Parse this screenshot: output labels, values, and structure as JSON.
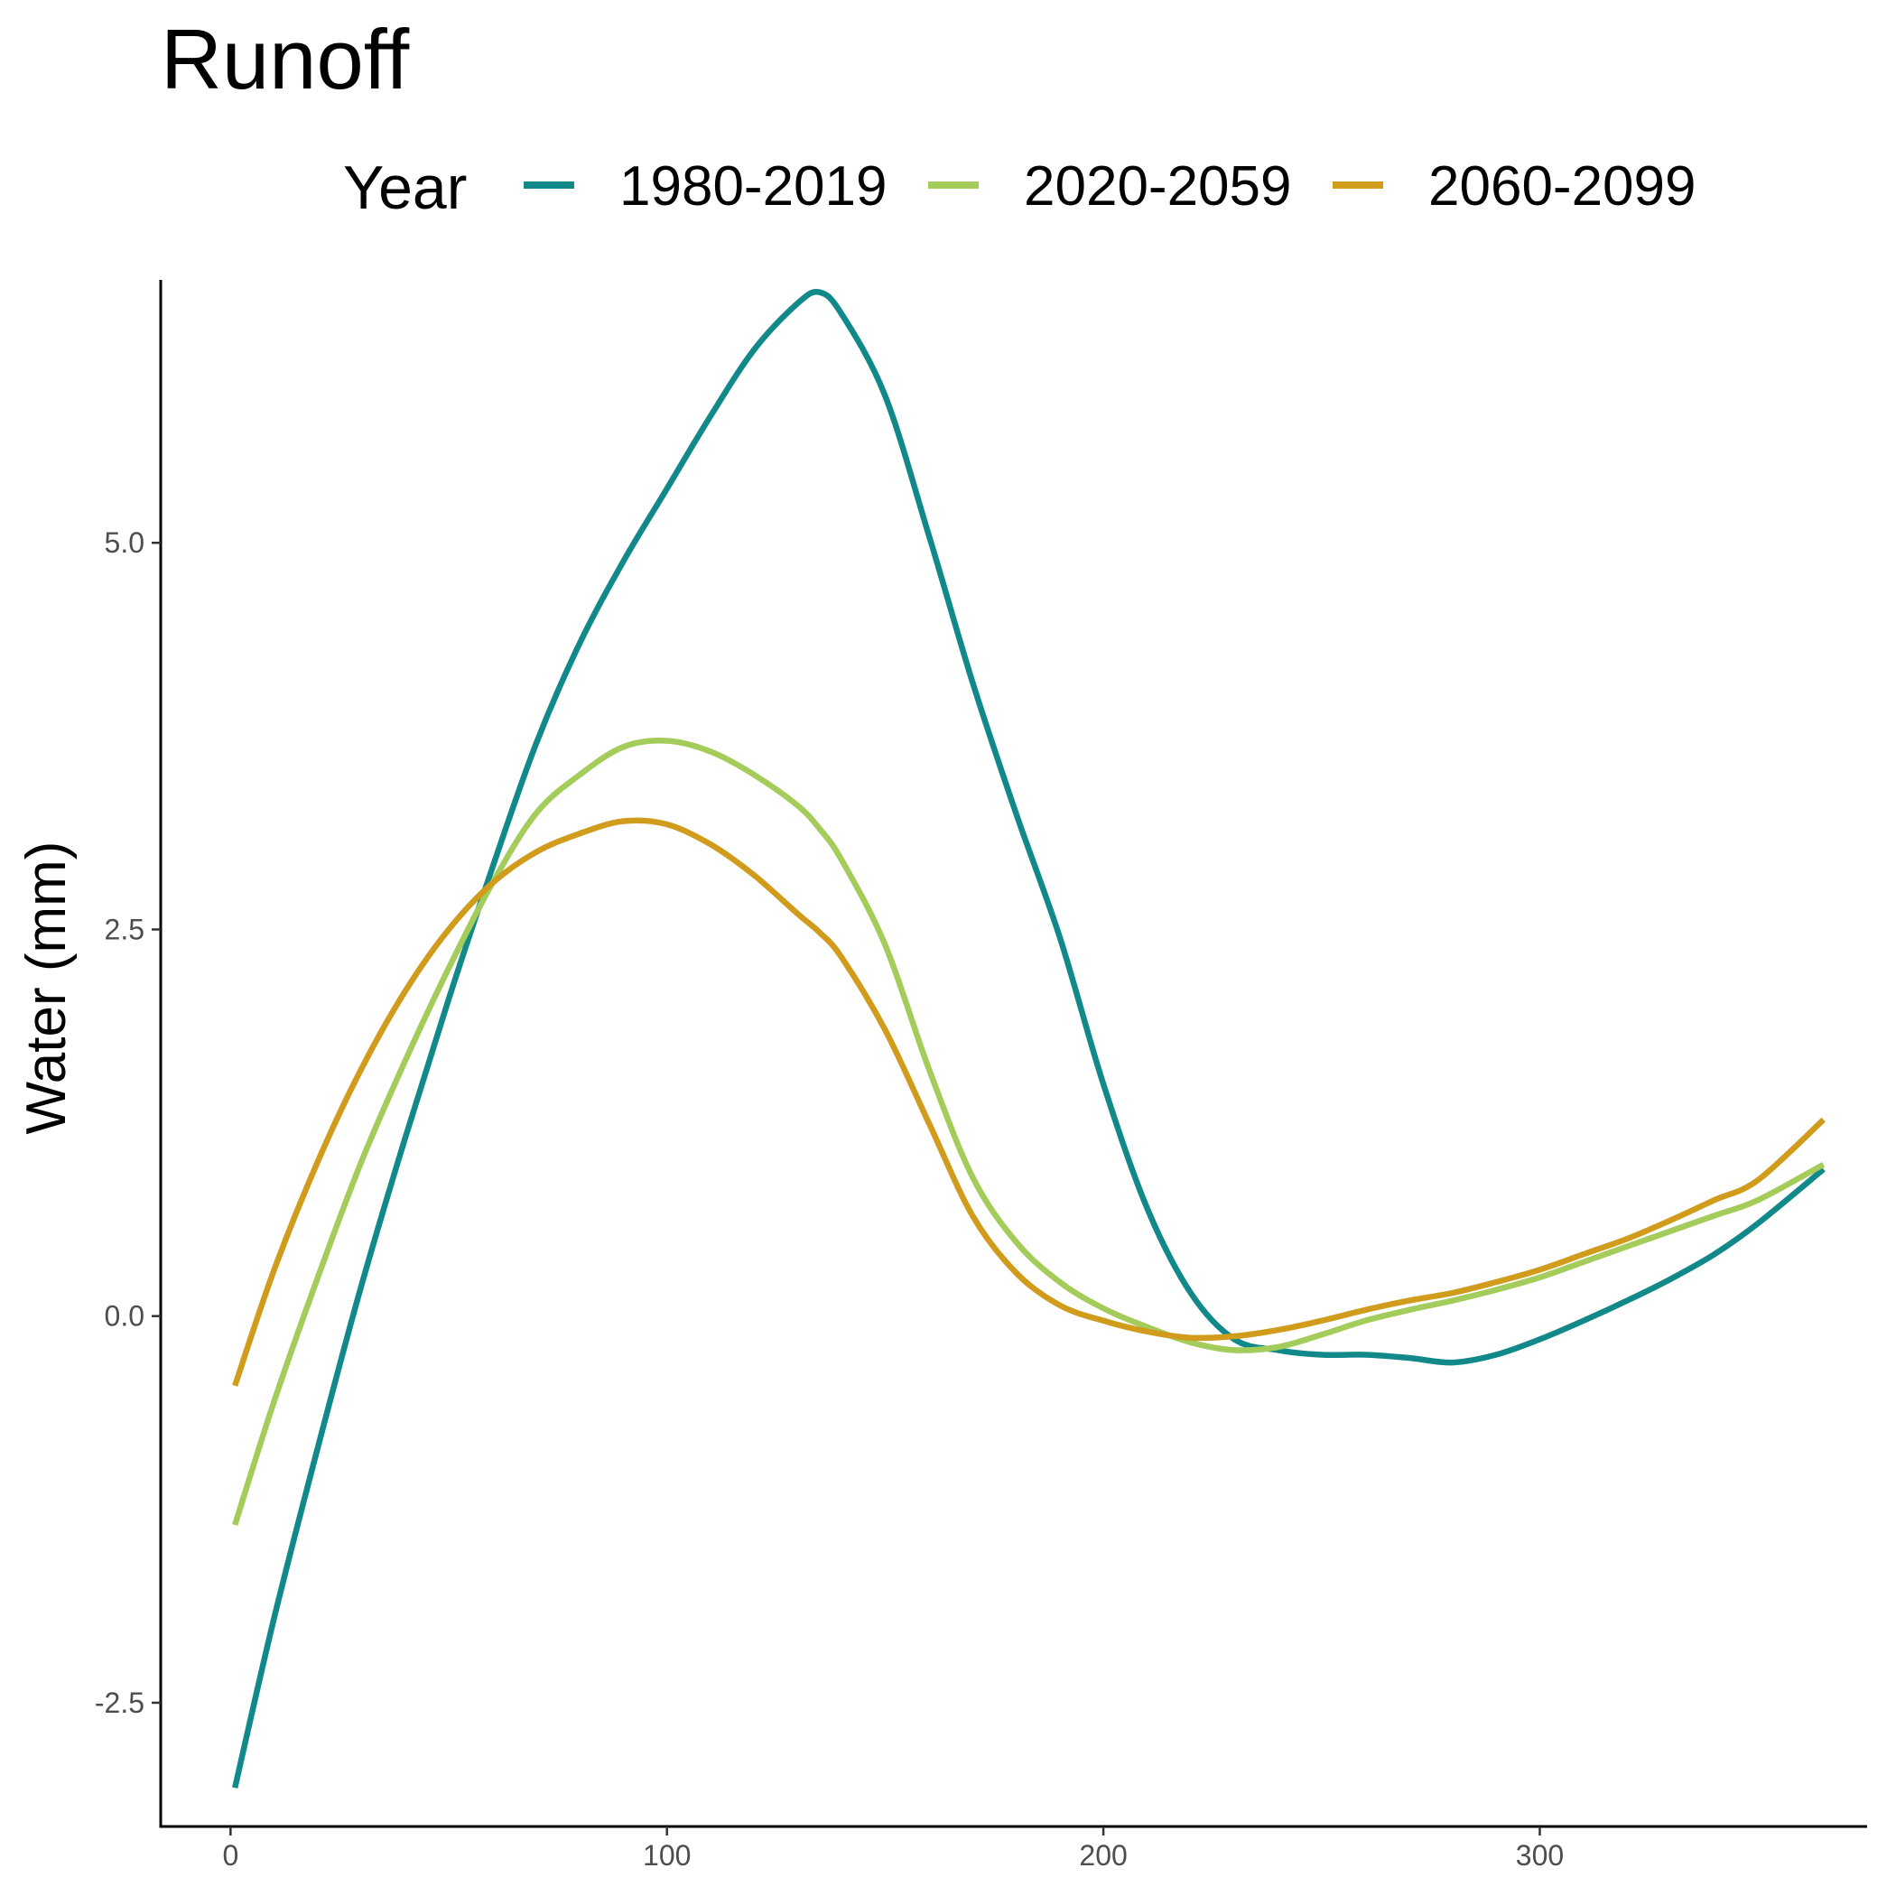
{
  "chart_data": {
    "type": "line",
    "title": "Runoff",
    "xlabel": "",
    "ylabel": "Water (mm)",
    "legend": {
      "title": "Year",
      "position": "top"
    },
    "xlim": [
      -16,
      375
    ],
    "ylim": [
      -3.3,
      6.7
    ],
    "x_ticks": [
      0,
      100,
      200,
      300
    ],
    "x_tick_labels": [
      "0",
      "100",
      "200",
      "300"
    ],
    "y_ticks": [
      -2.5,
      0,
      2.5,
      5
    ],
    "y_tick_labels": [
      "-2.5",
      "0.0",
      "2.5",
      "5.0"
    ],
    "grid": false,
    "x": [
      1,
      10,
      20,
      30,
      40,
      50,
      60,
      70,
      80,
      90,
      100,
      110,
      120,
      130,
      135,
      140,
      150,
      160,
      170,
      180,
      190,
      200,
      210,
      220,
      230,
      240,
      250,
      260,
      270,
      280,
      290,
      300,
      310,
      320,
      330,
      340,
      350,
      365
    ],
    "series": [
      {
        "name": "1980-2019",
        "color": "#11898a",
        "values": [
          -3.05,
          -1.95,
          -0.85,
          0.2,
          1.15,
          2.05,
          2.9,
          3.7,
          4.35,
          4.88,
          5.35,
          5.82,
          6.25,
          6.55,
          6.62,
          6.48,
          5.95,
          5.05,
          4.1,
          3.25,
          2.45,
          1.5,
          0.7,
          0.15,
          -0.15,
          -0.22,
          -0.25,
          -0.25,
          -0.27,
          -0.3,
          -0.25,
          -0.15,
          -0.03,
          0.1,
          0.24,
          0.4,
          0.6,
          0.95
        ]
      },
      {
        "name": "2020-2059",
        "color": "#a3cc5a",
        "values": [
          -1.35,
          -0.55,
          0.25,
          1.0,
          1.65,
          2.25,
          2.8,
          3.25,
          3.5,
          3.68,
          3.72,
          3.65,
          3.5,
          3.3,
          3.15,
          2.95,
          2.4,
          1.6,
          0.9,
          0.48,
          0.22,
          0.05,
          -0.07,
          -0.17,
          -0.22,
          -0.2,
          -0.12,
          -0.03,
          0.04,
          0.1,
          0.17,
          0.25,
          0.35,
          0.45,
          0.55,
          0.65,
          0.75,
          0.98
        ]
      },
      {
        "name": "2060-2099",
        "color": "#d19b1c",
        "values": [
          -0.45,
          0.3,
          1.0,
          1.6,
          2.1,
          2.5,
          2.8,
          3.0,
          3.12,
          3.2,
          3.18,
          3.05,
          2.85,
          2.6,
          2.48,
          2.32,
          1.85,
          1.25,
          0.65,
          0.28,
          0.07,
          -0.03,
          -0.1,
          -0.14,
          -0.13,
          -0.09,
          -0.03,
          0.04,
          0.1,
          0.15,
          0.22,
          0.3,
          0.4,
          0.5,
          0.62,
          0.75,
          0.88,
          1.27
        ]
      }
    ]
  }
}
